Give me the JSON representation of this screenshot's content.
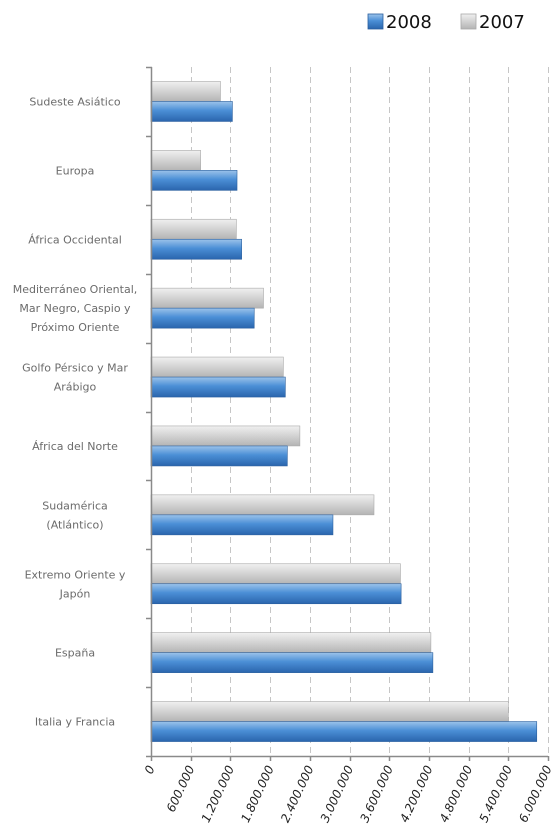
{
  "chart_data": {
    "type": "bar",
    "orientation": "horizontal",
    "categories": [
      "Sudeste Asiático",
      "Europa",
      "África Occidental",
      "Mediterráneo Oriental, Mar Negro, Caspio y Próximo Oriente",
      "Golfo Pérsico y Mar Arábigo",
      "África del Norte",
      "Sudamérica (Atlántico)",
      "Extremo Oriente y Japón",
      "España",
      "Italia y Francia"
    ],
    "category_lines": [
      [
        "Sudeste Asiático"
      ],
      [
        "Europa"
      ],
      [
        "África Occidental"
      ],
      [
        "Mediterráneo Oriental,",
        "Mar Negro, Caspio y",
        "Próximo Oriente"
      ],
      [
        "Golfo Pérsico y Mar",
        "Arábigo"
      ],
      [
        "África del Norte"
      ],
      [
        "Sudamérica",
        "(Atlántico)"
      ],
      [
        "Extremo Oriente y",
        "Japón"
      ],
      [
        "España"
      ],
      [
        "Italia y Francia"
      ]
    ],
    "series": [
      {
        "name": "2008",
        "color": "#3d85c6",
        "values": [
          1230000,
          1300000,
          1370000,
          1560000,
          2030000,
          2060000,
          2750000,
          3780000,
          4260000,
          5830000
        ]
      },
      {
        "name": "2007",
        "color": "#c8c8c8",
        "values": [
          1050000,
          750000,
          1290000,
          1700000,
          2000000,
          2250000,
          3370000,
          3770000,
          4230000,
          5400000
        ]
      }
    ],
    "xlim": [
      0,
      6000000
    ],
    "x_ticks": [
      0,
      600000,
      1200000,
      1800000,
      2400000,
      3000000,
      3600000,
      4200000,
      4800000,
      5400000,
      6000000
    ],
    "x_tick_labels": [
      "0",
      "600.000",
      "1.200.000",
      "1.800.000",
      "2.400.000",
      "3.000.000",
      "3.600.000",
      "4.200.000",
      "4.800.000",
      "5.400.000",
      "6.000.000"
    ],
    "grid": "vertical dashed",
    "legend": "top-right",
    "title": "",
    "xlabel": "",
    "ylabel": ""
  }
}
